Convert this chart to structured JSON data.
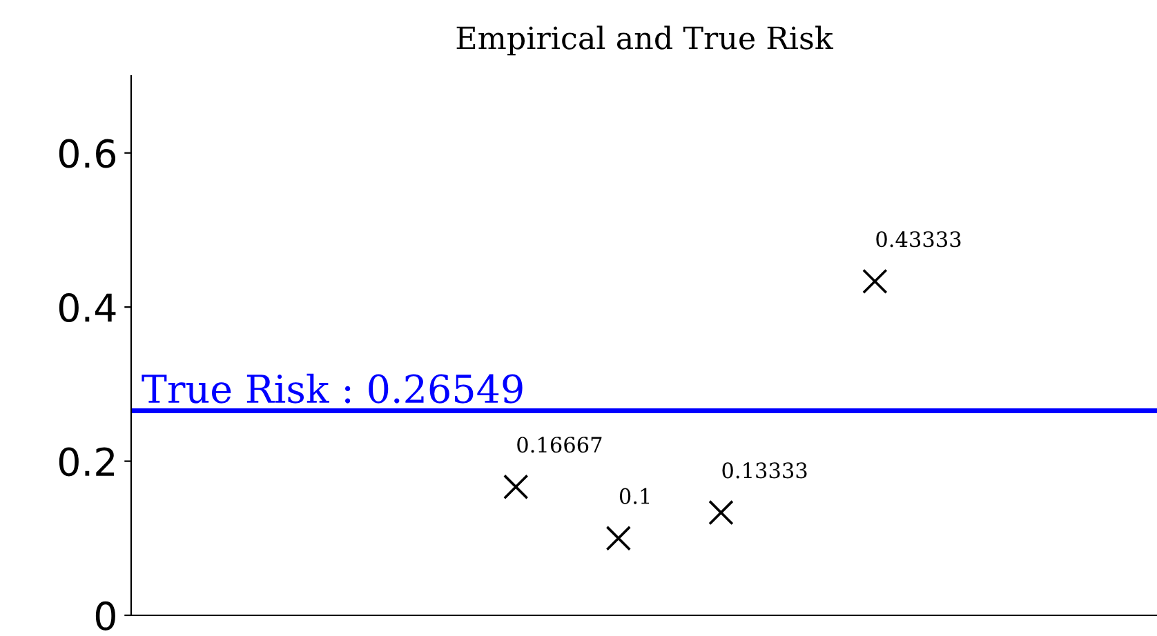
{
  "chart_data": {
    "type": "scatter",
    "title": "Empirical and True Risk",
    "categories": [
      null,
      null,
      null,
      null,
      null,
      null,
      null,
      null,
      null,
      null,
      null,
      null,
      null,
      null,
      null,
      null,
      null,
      null,
      null,
      null
    ],
    "series": [
      {
        "color": "#000000",
        "values": [
          null,
          null,
          null,
          null,
          null,
          null,
          null,
          0.16667,
          null,
          0.1,
          null,
          0.13333,
          null,
          null,
          0.43333,
          null,
          null,
          null,
          null,
          null
        ]
      }
    ],
    "data_labels": true,
    "marker": "cross",
    "ylim": [
      0,
      0.7
    ],
    "yticks": [
      0,
      0.2,
      0.4,
      0.6
    ],
    "tick_labels": "y",
    "grid": false,
    "legend": false,
    "ref_lines": [
      {
        "axis": "y",
        "value": 0.26549,
        "label": "True Risk : 0.26549",
        "color": "#0000ff",
        "line_style": "solid"
      }
    ]
  }
}
